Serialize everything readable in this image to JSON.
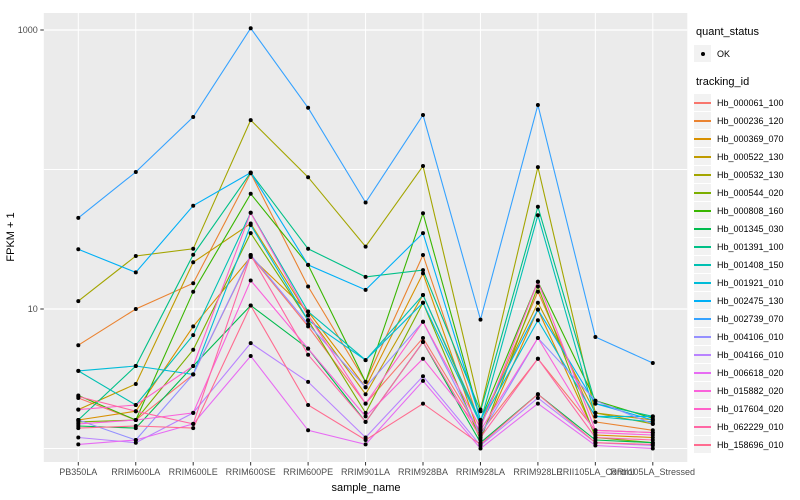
{
  "chart_data": {
    "type": "line",
    "title": "",
    "xlabel": "sample_name",
    "ylabel": "FPKM + 1",
    "yscale": "log10",
    "ylim": [
      0.8,
      1320
    ],
    "y_ticks": [
      1000,
      10
    ],
    "y_gridlines": [
      1,
      10,
      100,
      1000
    ],
    "grid": "on",
    "legend_position": "right",
    "panel_bg": "#EBEBEB",
    "gridline_color": "#FFFFFF",
    "point_color": "#000000",
    "categories": [
      "PB350LA",
      "RRIM600LA",
      "RRIM600LE",
      "RRIM600SE",
      "RRIM600PE",
      "RRIM901LA",
      "RRIM928BA",
      "RRIM928LA",
      "RRIM928LE",
      "RRII105LA_Control",
      "RRII105LA_Stressed"
    ],
    "series": [
      {
        "name": "Hb_000061_100",
        "color": "#F8766D",
        "values": [
          2.3,
          1.6,
          3.4,
          24,
          7.5,
          2.1,
          6.2,
          1.3,
          4.4,
          1.35,
          1.3
        ]
      },
      {
        "name": "Hb_000236_120",
        "color": "#EA8331",
        "values": [
          5.5,
          10,
          15.3,
          94,
          14.5,
          3.0,
          24.4,
          1.45,
          13.3,
          1.55,
          1.35
        ]
      },
      {
        "name": "Hb_000369_070",
        "color": "#D89000",
        "values": [
          1.6,
          1.85,
          7.5,
          23.6,
          9.6,
          2.75,
          18,
          1.2,
          9.9,
          1.25,
          1.2
        ]
      },
      {
        "name": "Hb_000522_130",
        "color": "#C09B00",
        "values": [
          1.9,
          2.9,
          21.6,
          41,
          9.0,
          2.45,
          12.6,
          1.5,
          11.1,
          1.8,
          1.6
        ]
      },
      {
        "name": "Hb_000532_130",
        "color": "#A3A500",
        "values": [
          11.4,
          24,
          27,
          226,
          88,
          28,
          106,
          1.9,
          104,
          1.8,
          1.5
        ]
      },
      {
        "name": "Hb_000544_020",
        "color": "#7CAE00",
        "values": [
          1.55,
          1.6,
          5.1,
          35,
          8.3,
          1.8,
          11.1,
          1.15,
          14.5,
          1.2,
          1.1
        ]
      },
      {
        "name": "Hb_000808_160",
        "color": "#39B600",
        "values": [
          2.4,
          1.6,
          13.3,
          67,
          20.7,
          3.0,
          48.5,
          1.6,
          15.7,
          2.2,
          1.65
        ]
      },
      {
        "name": "Hb_001345_030",
        "color": "#00BB4E",
        "values": [
          1.45,
          1.4,
          3.9,
          10.6,
          5.2,
          1.55,
          5.8,
          1.1,
          2.45,
          1.15,
          1.1
        ]
      },
      {
        "name": "Hb_001391_100",
        "color": "#00C087",
        "values": [
          1.6,
          3.9,
          24.5,
          95,
          27,
          17,
          19,
          1.85,
          54,
          2.1,
          1.7
        ]
      },
      {
        "name": "Hb_001408_150",
        "color": "#00C0B2",
        "values": [
          3.6,
          2.05,
          6.5,
          49,
          9.6,
          4.3,
          12.6,
          1.55,
          47,
          1.7,
          1.55
        ]
      },
      {
        "name": "Hb_001921_010",
        "color": "#00BCD8",
        "values": [
          3.6,
          3.9,
          3.4,
          40,
          8.3,
          4.3,
          11.1,
          1.5,
          8.3,
          1.7,
          1.7
        ]
      },
      {
        "name": "Hb_002475_130",
        "color": "#00B0F6",
        "values": [
          26.8,
          18.3,
          55,
          95,
          20.7,
          13.7,
          35,
          1.6,
          9.9,
          2.1,
          1.6
        ]
      },
      {
        "name": "Hb_002739_070",
        "color": "#35A2FF",
        "values": [
          45,
          96,
          238,
          1030,
          277,
          58,
          246,
          8.4,
          290,
          6.3,
          4.1
        ]
      },
      {
        "name": "Hb_004106_010",
        "color": "#9590FF",
        "values": [
          1.6,
          1.15,
          3.4,
          24.4,
          7.8,
          2.75,
          8.1,
          1.25,
          6.2,
          2.2,
          1.5
        ]
      },
      {
        "name": "Hb_004166_010",
        "color": "#B983FF",
        "values": [
          1.2,
          1.1,
          1.8,
          5.7,
          3.0,
          1.2,
          3.3,
          1.05,
          2.3,
          1.1,
          1.05
        ]
      },
      {
        "name": "Hb_006618_020",
        "color": "#E76BF3",
        "values": [
          1.07,
          1.15,
          1.5,
          4.6,
          1.35,
          1.07,
          3.05,
          1.0,
          2.1,
          1.05,
          1.0
        ]
      },
      {
        "name": "Hb_015882_020",
        "color": "#FA62DB",
        "values": [
          1.5,
          1.6,
          1.8,
          16,
          5.2,
          1.7,
          4.4,
          1.35,
          6.2,
          1.3,
          1.25
        ]
      },
      {
        "name": "Hb_017604_020",
        "color": "#FF61C9",
        "values": [
          1.9,
          2.05,
          3.9,
          48.9,
          9.0,
          2.1,
          8.1,
          1.4,
          15.7,
          1.35,
          1.3
        ]
      },
      {
        "name": "Hb_062229_010",
        "color": "#FF67A4",
        "values": [
          2.36,
          1.85,
          1.5,
          24.4,
          4.7,
          1.55,
          5.8,
          1.2,
          4.4,
          1.2,
          1.15
        ]
      },
      {
        "name": "Hb_158696_010",
        "color": "#FF6C90",
        "values": [
          1.4,
          1.45,
          1.4,
          10.6,
          2.05,
          1.15,
          2.1,
          1.07,
          2.45,
          1.1,
          1.07
        ]
      }
    ]
  },
  "legend": {
    "quant_status": {
      "title": "quant_status",
      "items": [
        {
          "label": "OK",
          "symbol": "black-point"
        }
      ]
    },
    "tracking_id": {
      "title": "tracking_id"
    }
  }
}
